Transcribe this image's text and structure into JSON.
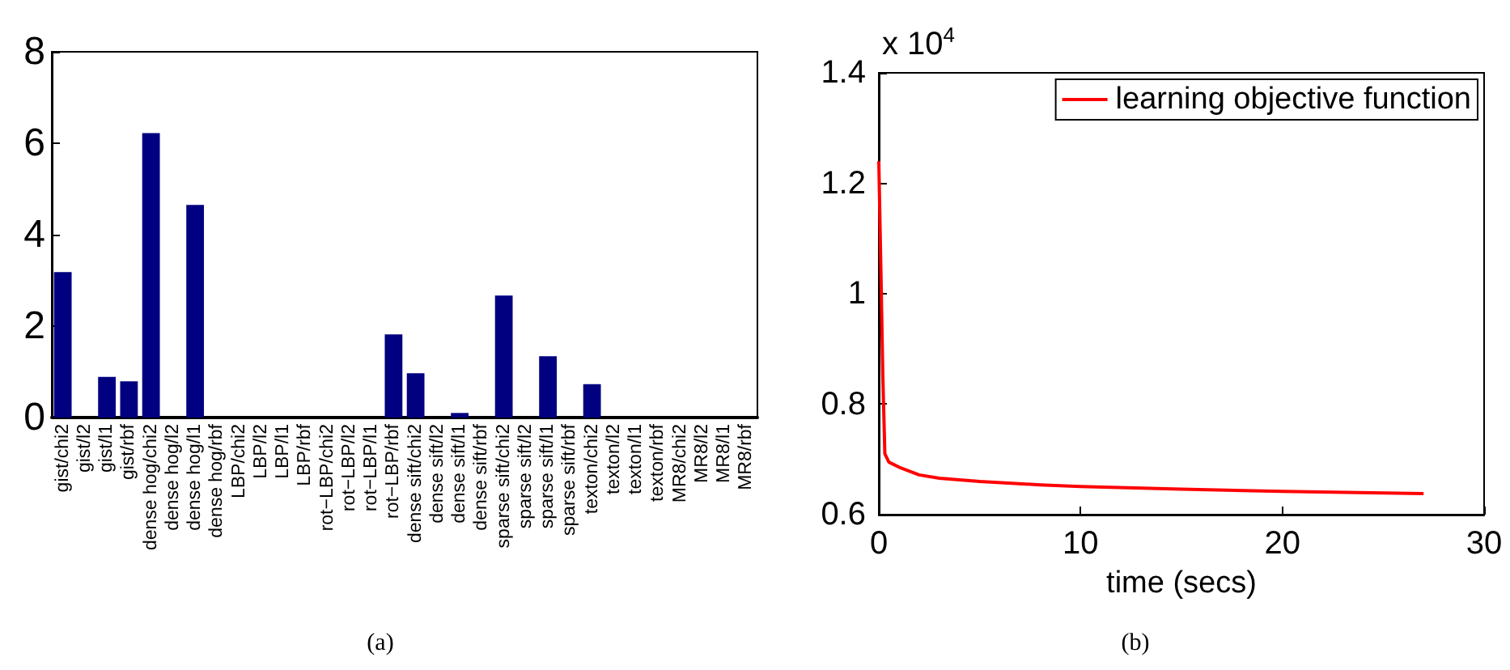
{
  "chart_data": [
    {
      "type": "bar",
      "categories": [
        "gist/chi2",
        "gist/l2",
        "gist/l1",
        "gist/rbf",
        "dense hog/chi2",
        "dense hog/l2",
        "dense hog/l1",
        "dense hog/rbf",
        "LBP/chi2",
        "LBP/l2",
        "LBP/l1",
        "LBP/rbf",
        "rot−LBP/chi2",
        "rot−LBP/l2",
        "rot−LBP/l1",
        "rot−LBP/rbf",
        "dense sift/chi2",
        "dense sift/l2",
        "dense sift/l1",
        "dense sift/rbf",
        "sparse sift/chi2",
        "sparse sift/l2",
        "sparse sift/l1",
        "sparse sift/rbf",
        "texton/chi2",
        "texton/l2",
        "texton/l1",
        "texton/rbf",
        "MR8/chi2",
        "MR8/l2",
        "MR8/l1",
        "MR8/rbf"
      ],
      "values": [
        3.18,
        0,
        0.89,
        0.79,
        6.22,
        0,
        4.65,
        0,
        0,
        0,
        0,
        0,
        0,
        0,
        0,
        1.82,
        0.97,
        0,
        0.1,
        0,
        2.67,
        0,
        1.34,
        0,
        0.73,
        0,
        0,
        0,
        0,
        0,
        0,
        0
      ],
      "color": "#000080",
      "ylim": [
        0,
        8
      ],
      "yticks": [
        0,
        2,
        4,
        6,
        8
      ],
      "grid": false,
      "legend": false,
      "annotations": [
        "(a)"
      ]
    },
    {
      "type": "line",
      "xlabel": "time (secs)",
      "ylabel": "x 10$^{4}$",
      "series": [
        {
          "name": "learning objective function",
          "color": "#ff0000",
          "x": [
            0,
            0.1,
            0.2,
            0.3,
            0.5,
            1,
            2,
            3,
            5,
            8,
            10,
            15,
            20,
            27
          ],
          "values": [
            1.24,
            1.05,
            0.85,
            0.71,
            0.695,
            0.686,
            0.672,
            0.666,
            0.66,
            0.654,
            0.651,
            0.646,
            0.642,
            0.638
          ]
        }
      ],
      "xlim": [
        0,
        30
      ],
      "xticks": [
        0,
        10,
        20,
        30
      ],
      "ylim": [
        0.6,
        1.4
      ],
      "yticks": [
        0.6,
        0.8,
        1,
        1.2,
        1.4
      ],
      "grid": false,
      "legend": "top right",
      "marker": "none",
      "line_style": "solid",
      "annotations": [
        "(b)"
      ]
    }
  ]
}
